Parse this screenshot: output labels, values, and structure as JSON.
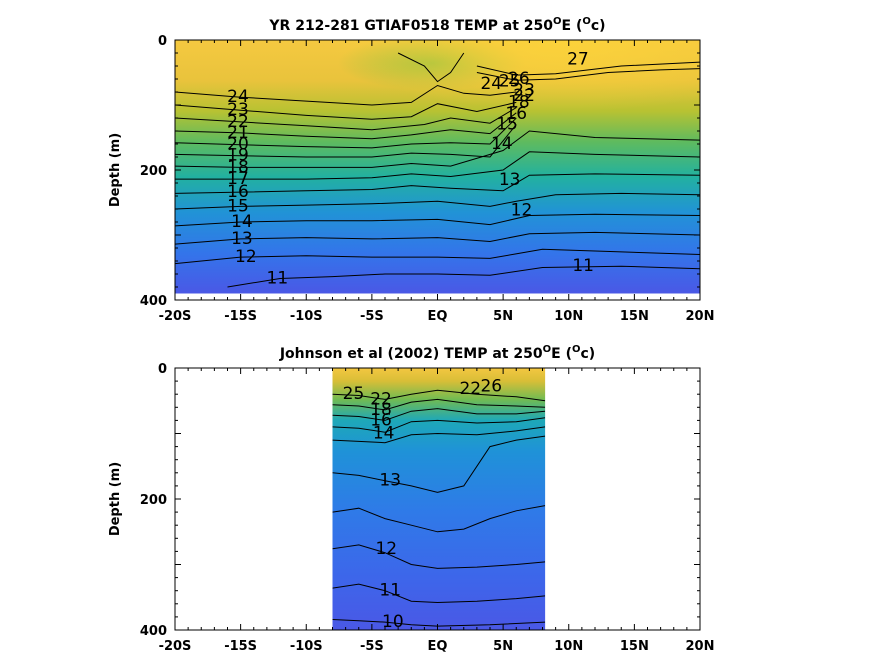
{
  "chart_data": [
    {
      "type": "heatmap",
      "title_main": "YR 212-281 GTIAF0518 TEMP at 250",
      "title_sup": "O",
      "title_unit_open": "E (",
      "title_unit_sup": "O",
      "title_unit_close": "c)",
      "ylabel": "Depth (m)",
      "ylim": [
        400,
        0
      ],
      "yticks": [
        {
          "v": 0,
          "label": "0"
        },
        {
          "v": 200,
          "label": "200"
        },
        {
          "v": 400,
          "label": "400"
        }
      ],
      "xlim": [
        -20,
        20
      ],
      "xticks": [
        {
          "v": -20,
          "label": "-20S"
        },
        {
          "v": -15,
          "label": "-15S"
        },
        {
          "v": -10,
          "label": "-10S"
        },
        {
          "v": -5,
          "label": "-5S"
        },
        {
          "v": 0,
          "label": "EQ"
        },
        {
          "v": 5,
          "label": "5N"
        },
        {
          "v": 10,
          "label": "10N"
        },
        {
          "v": 15,
          "label": "15N"
        },
        {
          "v": 20,
          "label": "20N"
        }
      ],
      "data_extent": {
        "x": [
          -20,
          20
        ],
        "ybottom": 390
      },
      "contour_labels": [
        {
          "text": "24",
          "x": -15.2,
          "y": 88
        },
        {
          "text": "23",
          "x": -15.2,
          "y": 108
        },
        {
          "text": "22",
          "x": -15.2,
          "y": 126
        },
        {
          "text": "21",
          "x": -15.2,
          "y": 143
        },
        {
          "text": "20",
          "x": -15.2,
          "y": 161
        },
        {
          "text": "19",
          "x": -15.2,
          "y": 178
        },
        {
          "text": "18",
          "x": -15.2,
          "y": 196
        },
        {
          "text": "17",
          "x": -15.2,
          "y": 214
        },
        {
          "text": "16",
          "x": -15.2,
          "y": 234
        },
        {
          "text": "15",
          "x": -15.2,
          "y": 256
        },
        {
          "text": "14",
          "x": -14.9,
          "y": 280
        },
        {
          "text": "13",
          "x": -14.9,
          "y": 306
        },
        {
          "text": "12",
          "x": -14.6,
          "y": 334
        },
        {
          "text": "11",
          "x": -12.2,
          "y": 367
        },
        {
          "text": "27",
          "x": 10.7,
          "y": 30
        },
        {
          "text": "26",
          "x": 6.2,
          "y": 60
        },
        {
          "text": "25",
          "x": 5.5,
          "y": 64
        },
        {
          "text": "24",
          "x": 4.1,
          "y": 68
        },
        {
          "text": "23",
          "x": 6.6,
          "y": 78
        },
        {
          "text": "22",
          "x": 6.6,
          "y": 86
        },
        {
          "text": "18",
          "x": 6.2,
          "y": 96
        },
        {
          "text": "16",
          "x": 6.0,
          "y": 114
        },
        {
          "text": "15",
          "x": 5.3,
          "y": 130
        },
        {
          "text": "14",
          "x": 4.9,
          "y": 160
        },
        {
          "text": "13",
          "x": 5.5,
          "y": 215
        },
        {
          "text": "12",
          "x": 6.4,
          "y": 262
        },
        {
          "text": "11",
          "x": 11.1,
          "y": 348
        }
      ]
    },
    {
      "type": "heatmap",
      "title_main": "Johnson et al (2002) TEMP at 250",
      "title_sup": "O",
      "title_unit_open": "E (",
      "title_unit_sup": "O",
      "title_unit_close": "c)",
      "ylabel": "Depth (m)",
      "ylim": [
        400,
        0
      ],
      "yticks": [
        {
          "v": 0,
          "label": "0"
        },
        {
          "v": 200,
          "label": "200"
        },
        {
          "v": 400,
          "label": "400"
        }
      ],
      "xlim": [
        -20,
        20
      ],
      "xticks": [
        {
          "v": -20,
          "label": "-20S"
        },
        {
          "v": -15,
          "label": "-15S"
        },
        {
          "v": -10,
          "label": "-10S"
        },
        {
          "v": -5,
          "label": "-5S"
        },
        {
          "v": 0,
          "label": "EQ"
        },
        {
          "v": 5,
          "label": "5N"
        },
        {
          "v": 10,
          "label": "10N"
        },
        {
          "v": 15,
          "label": "15N"
        },
        {
          "v": 20,
          "label": "20N"
        }
      ],
      "data_extent": {
        "x": [
          -8,
          8.2
        ],
        "ybottom": 400
      },
      "contour_labels": [
        {
          "text": "25",
          "x": -6.4,
          "y": 40
        },
        {
          "text": "22",
          "x": -4.3,
          "y": 48
        },
        {
          "text": "18",
          "x": -4.3,
          "y": 64
        },
        {
          "text": "16",
          "x": -4.3,
          "y": 80
        },
        {
          "text": "14",
          "x": -4.1,
          "y": 100
        },
        {
          "text": "22",
          "x": 2.5,
          "y": 32
        },
        {
          "text": "26",
          "x": 4.1,
          "y": 28
        },
        {
          "text": "13",
          "x": -3.6,
          "y": 172
        },
        {
          "text": "12",
          "x": -3.9,
          "y": 276
        },
        {
          "text": "11",
          "x": -3.6,
          "y": 340
        },
        {
          "text": "10",
          "x": -3.4,
          "y": 388
        }
      ]
    }
  ]
}
